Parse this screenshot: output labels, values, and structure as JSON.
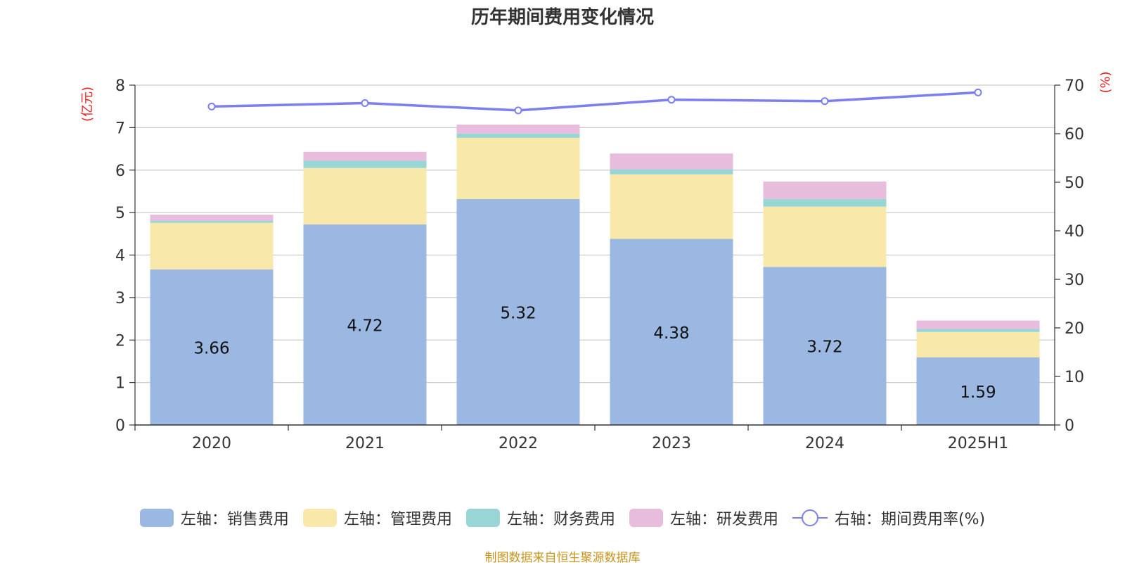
{
  "title": "历年期间费用变化情况",
  "source": "制图数据来自恒生聚源数据库",
  "chart_data": {
    "type": "bar",
    "stacked": true,
    "categories": [
      "2020",
      "2021",
      "2022",
      "2023",
      "2024",
      "2025H1"
    ],
    "series": [
      {
        "name": "左轴：销售费用",
        "axis": "left",
        "color": "#9bb8e2",
        "values": [
          3.66,
          4.72,
          5.32,
          4.38,
          3.72,
          1.59
        ],
        "data_labels": [
          "3.66",
          "4.72",
          "5.32",
          "4.38",
          "3.72",
          "1.59"
        ]
      },
      {
        "name": "左轴：管理费用",
        "axis": "left",
        "color": "#f8e8a9",
        "values": [
          1.1,
          1.33,
          1.44,
          1.52,
          1.42,
          0.6
        ]
      },
      {
        "name": "左轴：财务费用",
        "axis": "left",
        "color": "#98d5d5",
        "values": [
          0.05,
          0.17,
          0.1,
          0.12,
          0.18,
          0.07
        ]
      },
      {
        "name": "左轴：研发费用",
        "axis": "left",
        "color": "#e8bcdc",
        "values": [
          0.14,
          0.21,
          0.21,
          0.37,
          0.41,
          0.2
        ]
      },
      {
        "name": "右轴：期间费用率(%)",
        "axis": "right",
        "type": "line",
        "color": "#7b7ff0",
        "values": [
          65.6,
          66.3,
          64.8,
          67.0,
          66.7,
          68.5
        ]
      }
    ],
    "y_left": {
      "label": "(亿元)",
      "min": 0,
      "max": 8,
      "ticks": [
        "0",
        "1",
        "2",
        "3",
        "4",
        "5",
        "6",
        "7",
        "8"
      ]
    },
    "y_right": {
      "label": "(%)",
      "min": 0,
      "max": 70,
      "ticks": [
        "0",
        "10",
        "20",
        "30",
        "40",
        "50",
        "60",
        "70"
      ]
    },
    "grid": true,
    "legend_position": "bottom"
  }
}
